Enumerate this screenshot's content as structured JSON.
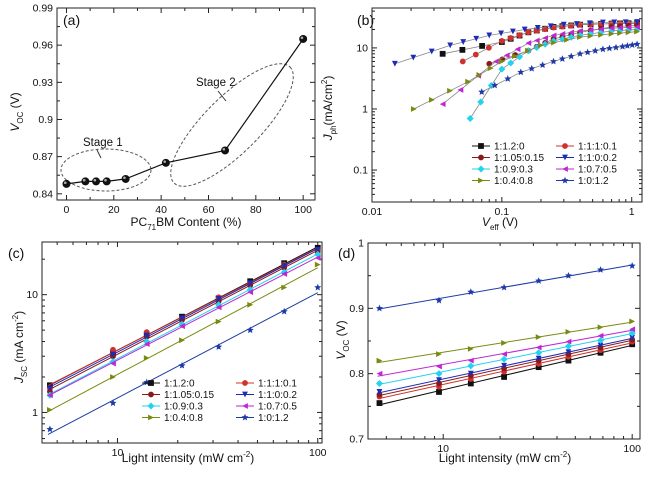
{
  "figure": {
    "panels": [
      "(a)",
      "(b)",
      "(c)",
      "(d)"
    ]
  },
  "legend_entries": [
    "1:1.2:0",
    "1:1:1:0.1",
    "1:1.05:0.15",
    "1:1:0:0.2",
    "1:0.9:0.3",
    "1:0.7:0.5",
    "1:0.4:0.8",
    "1:0:1.2"
  ],
  "series_colors": [
    "#111111",
    "#d0312d",
    "#8a1a1a",
    "#1d2bb8",
    "#22d3ee",
    "#c026d3",
    "#7a8a10",
    "#1d3aa8"
  ],
  "series_markers": [
    "square",
    "circle",
    "circle",
    "tri-down",
    "diamond",
    "tri-left",
    "tri-right",
    "star"
  ],
  "chart_data": [
    {
      "panel": "(a)",
      "type": "line",
      "xlabel_main": "PC",
      "xlabel_sub": "71",
      "xlabel_rest": "BM Content (%)",
      "ylabel_main": "V",
      "ylabel_sub": "OC",
      "ylabel_unit": " (V)",
      "xlim": [
        -4,
        105
      ],
      "ylim": [
        0.835,
        0.99
      ],
      "xticks": [
        0,
        20,
        40,
        60,
        80,
        100
      ],
      "yticks": [
        0.84,
        0.87,
        0.9,
        0.93,
        0.96,
        0.99
      ],
      "ytick_labels": [
        "0.84",
        "0.87",
        "0.90",
        "0.93",
        "0.96",
        "0.99"
      ],
      "x": [
        0,
        8,
        12.5,
        17,
        25,
        42,
        67,
        100
      ],
      "y": [
        0.848,
        0.85,
        0.85,
        0.85,
        0.852,
        0.865,
        0.875,
        0.965
      ],
      "annotations": [
        "Stage 1",
        "Stage 2"
      ]
    },
    {
      "panel": "(b)",
      "type": "scatter",
      "xscale": "log",
      "yscale": "log",
      "xlabel_main": "V",
      "xlabel_sub": "eff",
      "xlabel_unit": " (V)",
      "ylabel_main": "J",
      "ylabel_sub": "ph",
      "ylabel_unit": "(mA/cm",
      "ylabel_sup": "2",
      "ylabel_close": ")",
      "xlim": [
        0.01,
        1.2
      ],
      "ylim": [
        0.03,
        45
      ],
      "xticks": [
        0.01,
        0.1,
        1
      ],
      "xtick_labels": [
        "0.01",
        "0.1",
        "1"
      ],
      "yticks": [
        0.1,
        1,
        10
      ],
      "ytick_labels": [
        "0.1",
        "1",
        "10"
      ],
      "series": [
        {
          "x": [
            0.035,
            0.1,
            0.16,
            0.25,
            0.4,
            0.7,
            1.1
          ],
          "y": [
            8,
            12.5,
            18,
            22,
            24,
            25,
            25.5
          ]
        },
        {
          "x": [
            0.05,
            0.1,
            0.16,
            0.25,
            0.4,
            0.7,
            1.1
          ],
          "y": [
            6,
            13,
            18,
            21.5,
            24,
            25,
            25
          ]
        },
        {
          "x": [
            0.08,
            0.16,
            0.25,
            0.4,
            0.7,
            1.1
          ],
          "y": [
            5.5,
            9,
            14,
            18,
            22,
            23.5
          ]
        },
        {
          "x": [
            0.015,
            0.04,
            0.08,
            0.15,
            0.3,
            0.6,
            1.1
          ],
          "y": [
            5.5,
            11,
            16,
            20,
            24,
            26,
            26.5
          ]
        },
        {
          "x": [
            0.057,
            0.1,
            0.16,
            0.25,
            0.4,
            0.7,
            1.1
          ],
          "y": [
            0.7,
            4.5,
            9,
            13,
            16,
            19,
            20
          ]
        },
        {
          "x": [
            0.035,
            0.09,
            0.16,
            0.25,
            0.4,
            0.7,
            1.1
          ],
          "y": [
            1.2,
            6,
            12,
            16,
            19,
            21,
            22
          ]
        },
        {
          "x": [
            0.021,
            0.055,
            0.1,
            0.2,
            0.4,
            0.7,
            1.1
          ],
          "y": [
            1,
            2.8,
            6,
            11,
            15,
            17,
            18.5
          ]
        },
        {
          "x": [
            0.07,
            0.14,
            0.25,
            0.4,
            0.6,
            0.85,
            1.1
          ],
          "y": [
            1.9,
            4,
            6,
            8,
            9.5,
            10.5,
            11.5
          ]
        }
      ]
    },
    {
      "panel": "(c)",
      "type": "scatter",
      "xscale": "log",
      "yscale": "log",
      "xlabel": "Light intensity (mW cm",
      "xlabel_sup": "-2",
      "xlabel_close": ")",
      "ylabel_main": "J",
      "ylabel_sub": "SC",
      "ylabel_unit": " (mA cm",
      "ylabel_sup": "-2",
      "ylabel_close": ")",
      "xlim": [
        4.2,
        105
      ],
      "ylim": [
        0.55,
        28
      ],
      "xticks": [
        10,
        100
      ],
      "xtick_labels": [
        "10",
        "100"
      ],
      "yticks": [
        1,
        10
      ],
      "ytick_labels": [
        "1",
        "10"
      ],
      "x": [
        4.6,
        9.5,
        14,
        21,
        32,
        46,
        68,
        100
      ],
      "series": [
        {
          "y": [
            1.7,
            3.2,
            4.6,
            6.5,
            9.3,
            13,
            18.5,
            25
          ]
        },
        {
          "y": [
            1.6,
            3.4,
            4.8,
            6.3,
            9.5,
            12.5,
            18,
            24
          ]
        },
        {
          "y": [
            1.5,
            3.0,
            4.4,
            6.1,
            8.8,
            12,
            17,
            23
          ]
        },
        {
          "y": [
            1.6,
            3.1,
            4.5,
            6.3,
            9.2,
            12.5,
            17.5,
            24
          ]
        },
        {
          "y": [
            1.4,
            2.7,
            4.0,
            5.6,
            8.2,
            11,
            15.5,
            22
          ]
        },
        {
          "y": [
            1.4,
            2.6,
            3.8,
            5.4,
            7.8,
            10.5,
            15,
            20.5
          ]
        },
        {
          "y": [
            1.05,
            2.0,
            2.9,
            4.1,
            5.9,
            8.2,
            11.5,
            18
          ]
        },
        {
          "y": [
            0.72,
            1.2,
            1.8,
            2.5,
            3.6,
            5.0,
            7.2,
            11.5
          ]
        }
      ]
    },
    {
      "panel": "(d)",
      "type": "scatter",
      "xscale": "log",
      "xlabel": "Light intensity (mW cm",
      "xlabel_sup": "-2",
      "xlabel_close": ")",
      "ylabel_main": "V",
      "ylabel_sub": "OC",
      "ylabel_unit": " (V)",
      "xlim": [
        4.0,
        110
      ],
      "ylim": [
        0.7,
        1.0
      ],
      "xticks": [
        10,
        100
      ],
      "xtick_labels": [
        "10",
        "100"
      ],
      "yticks": [
        0.7,
        0.8,
        0.9,
        1.0
      ],
      "ytick_labels": [
        "0.7",
        "0.8",
        "0.9",
        "1"
      ],
      "x": [
        4.6,
        9.5,
        14,
        21,
        32,
        46,
        68,
        100
      ],
      "series": [
        {
          "y": [
            0.755,
            0.772,
            0.785,
            0.795,
            0.81,
            0.82,
            0.832,
            0.845
          ]
        },
        {
          "y": [
            0.765,
            0.78,
            0.792,
            0.803,
            0.815,
            0.826,
            0.836,
            0.849
          ]
        },
        {
          "y": [
            0.768,
            0.785,
            0.797,
            0.808,
            0.82,
            0.83,
            0.84,
            0.852
          ]
        },
        {
          "y": [
            0.772,
            0.79,
            0.8,
            0.812,
            0.823,
            0.833,
            0.843,
            0.855
          ]
        },
        {
          "y": [
            0.785,
            0.8,
            0.812,
            0.822,
            0.832,
            0.842,
            0.851,
            0.862
          ]
        },
        {
          "y": [
            0.8,
            0.811,
            0.82,
            0.83,
            0.84,
            0.849,
            0.858,
            0.868
          ]
        },
        {
          "y": [
            0.82,
            0.83,
            0.838,
            0.847,
            0.856,
            0.864,
            0.871,
            0.88
          ]
        },
        {
          "y": [
            0.9,
            0.912,
            0.925,
            0.932,
            0.942,
            0.95,
            0.959,
            0.965
          ]
        }
      ]
    }
  ]
}
